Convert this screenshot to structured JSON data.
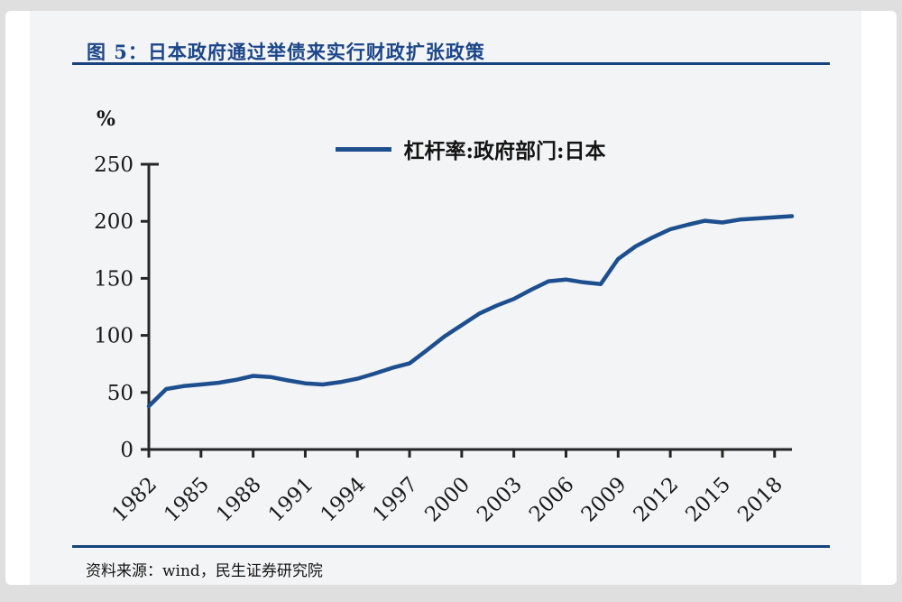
{
  "figure": {
    "label": "图 5：",
    "title": "图 5：日本政府通过举债来实行财政扩张政策",
    "source": "资料来源：wind，民生证券研究院"
  },
  "colors": {
    "accent_blue": "#16437e",
    "title_blue": "#1b4689",
    "line_blue": "#1d4f8f",
    "figure_bg": "#f3f4f5",
    "axis_color": "#262626",
    "tick_text": "#1a1a1a"
  },
  "chart_data": {
    "type": "line",
    "title": "图 5：日本政府通过举债来实行财政扩张政策",
    "legend": [
      "杠杆率:政府部门:日本"
    ],
    "legend_position": "top-center",
    "xlabel": "",
    "ylabel": "%",
    "ylim": [
      0,
      250
    ],
    "yticks": [
      0,
      50,
      100,
      150,
      200,
      250
    ],
    "xtick_labels": [
      "1982",
      "1985",
      "1988",
      "1991",
      "1994",
      "1997",
      "2000",
      "2003",
      "2006",
      "2009",
      "2012",
      "2015",
      "2018"
    ],
    "grid": false,
    "series": [
      {
        "name": "杠杆率:政府部门:日本",
        "color": "#1d4f8f",
        "x": [
          1982,
          1983,
          1984,
          1985,
          1986,
          1987,
          1988,
          1989,
          1990,
          1991,
          1992,
          1993,
          1994,
          1995,
          1996,
          1997,
          1998,
          1999,
          2000,
          2001,
          2002,
          2003,
          2004,
          2005,
          2006,
          2007,
          2008,
          2009,
          2010,
          2011,
          2012,
          2013,
          2014,
          2015,
          2016,
          2017,
          2018,
          2019
        ],
        "values": [
          38,
          53,
          55.5,
          57,
          58.5,
          61,
          64.5,
          63.5,
          60.5,
          58,
          57,
          59,
          62,
          66.5,
          71.5,
          75.5,
          87,
          99,
          109,
          119,
          126,
          132,
          140,
          147.5,
          149,
          146.5,
          145,
          167,
          178,
          186,
          193,
          197,
          200.5,
          199,
          201.5,
          202.5,
          203.5,
          204.5
        ]
      }
    ]
  }
}
